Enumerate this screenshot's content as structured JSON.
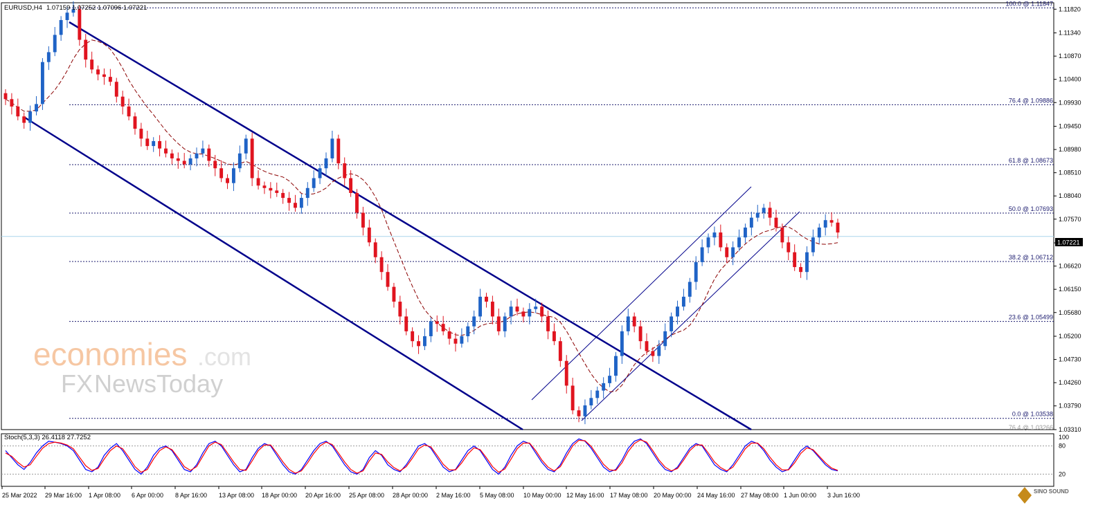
{
  "header": {
    "symbol": "EURUSD,H4",
    "ohlc": "1.07159 1.07252 1.07096 1.07221"
  },
  "current_price": "1.07221",
  "stoch_header": "Stoch(5,3,3) 26.4118 27.7252",
  "watermark": {
    "brand": "economies",
    "domain": ".com",
    "sub_fx": "FX",
    "sub_news": "NewsToday"
  },
  "logo_text": "SINO SOUND",
  "colors": {
    "bull": "#1f63c6",
    "bear": "#e0141f",
    "ma": "#8b0000",
    "channel": "#00008b",
    "stoch_main": "#0000ff",
    "stoch_signal": "#ff0000",
    "price_line": "#a9d6ec"
  },
  "chart_data": {
    "type": "candlestick",
    "symbol": "EURUSD",
    "timeframe": "H4",
    "ylim": [
      1.0331,
      1.1195
    ],
    "y_ticks": [
      "1.11820",
      "1.11340",
      "1.10870",
      "1.10400",
      "1.09930",
      "1.09450",
      "1.08980",
      "1.08510",
      "1.08040",
      "1.07570",
      "1.07090",
      "1.06620",
      "1.06150",
      "1.05680",
      "1.05200",
      "1.04730",
      "1.04260",
      "1.03790",
      "1.03310"
    ],
    "x_labels": [
      "25 Mar 2022",
      "29 Mar 16:00",
      "1 Apr 08:00",
      "6 Apr 00:00",
      "8 Apr 16:00",
      "13 Apr 08:00",
      "18 Apr 00:00",
      "20 Apr 16:00",
      "25 Apr 08:00",
      "28 Apr 00:00",
      "2 May 16:00",
      "5 May 08:00",
      "10 May 00:00",
      "12 May 16:00",
      "17 May 08:00",
      "20 May 00:00",
      "24 May 16:00",
      "27 May 08:00",
      "1 Jun 00:00",
      "3 Jun 16:00"
    ],
    "fibonacci": [
      {
        "label": "100.0 @ 1.11847",
        "level": 1.11847
      },
      {
        "label": "76.4 @ 1.09886",
        "level": 1.09886
      },
      {
        "label": "61.8 @ 1.08673",
        "level": 1.08673
      },
      {
        "label": "50.0 @ 1.07693",
        "level": 1.07693
      },
      {
        "label": "38.2 @ 1.06712",
        "level": 1.06712
      },
      {
        "label": "23.6 @ 1.05499",
        "level": 1.05499
      },
      {
        "label": "0.0 @ 1.03538",
        "level": 1.03538
      },
      {
        "label": "76.4 @ 1.03266",
        "level": 1.03266
      }
    ],
    "closes": [
      1.1,
      1.0985,
      1.0965,
      1.0952,
      1.0975,
      1.099,
      1.1075,
      1.1095,
      1.113,
      1.116,
      1.1175,
      1.1182,
      1.112,
      1.108,
      1.106,
      1.105,
      1.1045,
      1.1035,
      1.1005,
      1.0985,
      1.0965,
      1.094,
      1.092,
      1.0905,
      1.0915,
      1.09,
      1.089,
      1.088,
      1.0875,
      1.0868,
      1.088,
      1.089,
      1.09,
      1.0875,
      1.086,
      1.084,
      1.083,
      1.086,
      1.089,
      1.092,
      1.084,
      1.0825,
      1.082,
      1.0815,
      1.081,
      1.08,
      1.079,
      1.078,
      1.08,
      1.082,
      1.084,
      1.086,
      1.088,
      1.092,
      1.087,
      1.084,
      1.081,
      1.077,
      1.074,
      1.071,
      1.068,
      1.065,
      1.062,
      1.059,
      1.056,
      1.053,
      1.051,
      1.05,
      1.052,
      1.055,
      1.0545,
      1.053,
      1.0515,
      1.0505,
      1.052,
      1.054,
      1.056,
      1.06,
      1.059,
      1.056,
      1.053,
      1.056,
      1.058,
      1.057,
      1.056,
      1.0575,
      1.058,
      1.056,
      1.053,
      1.051,
      1.047,
      1.042,
      1.037,
      1.0358,
      1.038,
      1.0395,
      1.041,
      1.0425,
      1.044,
      1.048,
      1.053,
      1.056,
      1.054,
      1.051,
      1.049,
      1.048,
      1.05,
      1.053,
      1.056,
      1.058,
      1.06,
      1.063,
      1.067,
      1.07,
      1.072,
      1.073,
      1.07,
      1.068,
      1.07,
      1.072,
      1.074,
      1.076,
      1.077,
      1.078,
      1.076,
      1.074,
      1.071,
      1.069,
      1.066,
      1.065,
      1.069,
      1.072,
      1.074,
      1.0755,
      1.075,
      1.073
    ],
    "series": [
      {
        "name": "Stoch main",
        "values": [
          70,
          55,
          40,
          30,
          45,
          65,
          80,
          90,
          88,
          85,
          80,
          70,
          50,
          30,
          25,
          35,
          60,
          75,
          85,
          70,
          50,
          30,
          20,
          35,
          60,
          75,
          80,
          70,
          50,
          30,
          25,
          40,
          65,
          85,
          90,
          80,
          60,
          40,
          25,
          30,
          55,
          75,
          85,
          80,
          60,
          40,
          25,
          20,
          30,
          50,
          70,
          85,
          90,
          80,
          60,
          40,
          25,
          20,
          30,
          55,
          70,
          60,
          40,
          30,
          25,
          40,
          60,
          80,
          85,
          75,
          55,
          35,
          25,
          30,
          50,
          70,
          80,
          70,
          50,
          30,
          20,
          35,
          60,
          80,
          90,
          85,
          65,
          45,
          30,
          25,
          40,
          65,
          85,
          95,
          90,
          75,
          55,
          35,
          25,
          30,
          50,
          75,
          90,
          95,
          85,
          65,
          45,
          30,
          25,
          35,
          55,
          75,
          85,
          80,
          60,
          40,
          30,
          25,
          40,
          60,
          80,
          90,
          85,
          70,
          50,
          35,
          25,
          30,
          50,
          70,
          80,
          70,
          55,
          40,
          30,
          27
        ]
      },
      {
        "name": "Stoch signal",
        "values": [
          65,
          58,
          45,
          35,
          40,
          58,
          75,
          85,
          88,
          86,
          82,
          74,
          56,
          38,
          28,
          32,
          52,
          70,
          80,
          74,
          56,
          36,
          24,
          30,
          52,
          70,
          78,
          72,
          55,
          36,
          28,
          36,
          58,
          80,
          88,
          83,
          65,
          46,
          30,
          28,
          48,
          70,
          82,
          82,
          65,
          46,
          30,
          22,
          27,
          44,
          64,
          80,
          88,
          83,
          65,
          46,
          30,
          22,
          27,
          48,
          65,
          62,
          46,
          34,
          27,
          36,
          54,
          74,
          82,
          78,
          60,
          41,
          29,
          29,
          44,
          63,
          76,
          72,
          55,
          36,
          24,
          31,
          52,
          74,
          86,
          86,
          70,
          50,
          35,
          27,
          36,
          58,
          80,
          92,
          91,
          79,
          60,
          41,
          29,
          28,
          44,
          68,
          85,
          93,
          88,
          70,
          50,
          35,
          27,
          32,
          50,
          70,
          82,
          82,
          65,
          46,
          34,
          27,
          35,
          54,
          74,
          86,
          86,
          74,
          56,
          40,
          29,
          29,
          44,
          64,
          76,
          72,
          58,
          44,
          33,
          28
        ]
      }
    ]
  }
}
